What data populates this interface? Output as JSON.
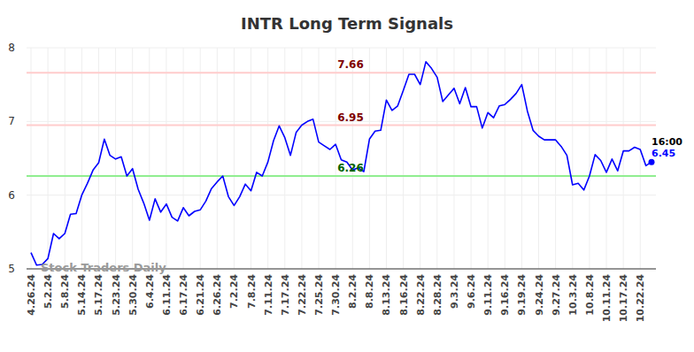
{
  "chart_data": {
    "type": "line",
    "title": "INTR Long Term Signals",
    "categories": [
      "4.26.24",
      null,
      null,
      "5.2.24",
      null,
      null,
      "5.8.24",
      null,
      null,
      "5.14.24",
      null,
      null,
      "5.17.24",
      null,
      null,
      "5.23.24",
      null,
      null,
      "5.30.24",
      null,
      null,
      "6.4.24",
      null,
      null,
      "6.11.24",
      null,
      null,
      "6.17.24",
      null,
      null,
      "6.21.24",
      null,
      null,
      "6.26.24",
      null,
      null,
      "7.2.24",
      null,
      null,
      "7.8.24",
      null,
      null,
      "7.11.24",
      null,
      null,
      "7.17.24",
      null,
      null,
      "7.22.24",
      null,
      null,
      "7.25.24",
      null,
      null,
      "7.30.24",
      null,
      null,
      "8.2.24",
      null,
      null,
      "8.8.24",
      null,
      null,
      "8.13.24",
      null,
      null,
      "8.16.24",
      null,
      null,
      "8.22.24",
      null,
      null,
      "8.28.24",
      null,
      null,
      "9.3.24",
      null,
      null,
      "9.6.24",
      null,
      null,
      "9.11.24",
      null,
      null,
      "9.16.24",
      null,
      null,
      "9.19.24",
      null,
      null,
      "9.24.24",
      null,
      null,
      "9.27.24",
      null,
      null,
      "10.3.24",
      null,
      null,
      "10.8.24",
      null,
      null,
      "10.11.24",
      null,
      null,
      "10.17.24",
      null,
      null,
      "10.22.24",
      null,
      null
    ],
    "values": [
      5.22,
      5.05,
      5.06,
      5.14,
      5.48,
      5.41,
      5.48,
      5.74,
      5.75,
      6.0,
      6.16,
      6.34,
      6.44,
      6.76,
      6.54,
      6.49,
      6.52,
      6.26,
      6.36,
      6.08,
      5.89,
      5.66,
      5.95,
      5.77,
      5.88,
      5.7,
      5.65,
      5.83,
      5.72,
      5.78,
      5.8,
      5.92,
      6.09,
      6.18,
      6.26,
      5.98,
      5.86,
      5.98,
      6.15,
      6.06,
      6.31,
      6.26,
      6.45,
      6.74,
      6.94,
      6.78,
      6.54,
      6.85,
      6.95,
      7.0,
      7.03,
      6.72,
      6.67,
      6.62,
      6.69,
      6.48,
      6.45,
      6.34,
      6.37,
      6.32,
      6.76,
      6.87,
      6.88,
      7.29,
      7.15,
      7.21,
      7.42,
      7.64,
      7.64,
      7.5,
      7.81,
      7.72,
      7.6,
      7.27,
      7.36,
      7.45,
      7.24,
      7.46,
      7.2,
      7.2,
      6.91,
      7.12,
      7.05,
      7.21,
      7.23,
      7.3,
      7.38,
      7.5,
      7.14,
      6.88,
      6.8,
      6.75,
      6.75,
      6.75,
      6.66,
      6.54,
      6.14,
      6.16,
      6.07,
      6.26,
      6.55,
      6.47,
      6.31,
      6.49,
      6.33,
      6.6,
      6.6,
      6.65,
      6.62,
      6.4,
      6.45
    ],
    "color": "#0000ff",
    "ylim": [
      5,
      8
    ],
    "yticks": [
      5,
      6,
      7,
      8
    ],
    "grid": true,
    "annotations": [
      {
        "value": 7.66,
        "label": "7.66",
        "color": "#ffcccc",
        "label_color": "#800000"
      },
      {
        "value": 6.95,
        "label": "6.95",
        "color": "#ffcccc",
        "label_color": "#800000"
      },
      {
        "value": 6.26,
        "label": "6.26",
        "color": "#90ee90",
        "label_color": "#006400"
      }
    ],
    "last_point": {
      "label": "16:00",
      "value_label": "6.45"
    },
    "watermark": "Stock Traders Daily"
  }
}
